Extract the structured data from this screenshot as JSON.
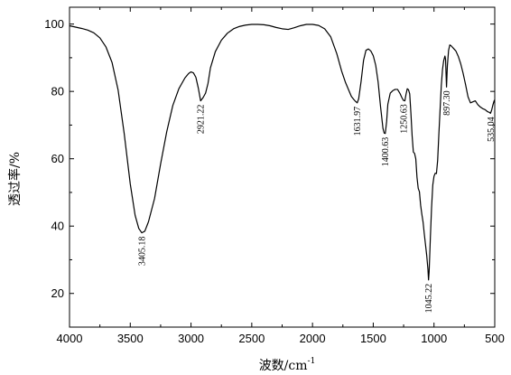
{
  "chart_data": {
    "type": "line",
    "title": "",
    "xlabel": "波数/cm",
    "xlabel_superscript": "-1",
    "ylabel": "透过率/%",
    "xlim": [
      4000,
      500
    ],
    "ylim": [
      10,
      105
    ],
    "x_reversed": true,
    "grid": false,
    "legend": "none",
    "xticks": [
      4000,
      3500,
      3000,
      2500,
      2000,
      1500,
      1000,
      500
    ],
    "yticks": [
      20,
      40,
      60,
      80,
      100
    ],
    "line_color": "#000000",
    "series": [
      {
        "x": [
          4000,
          3950,
          3900,
          3850,
          3800,
          3750,
          3700,
          3650,
          3600,
          3550,
          3500,
          3460,
          3430,
          3405,
          3380,
          3350,
          3300,
          3250,
          3200,
          3150,
          3100,
          3050,
          3020,
          3000,
          2980,
          2960,
          2940,
          2921,
          2900,
          2880,
          2860,
          2840,
          2800,
          2750,
          2700,
          2650,
          2600,
          2550,
          2500,
          2450,
          2400,
          2350,
          2300,
          2250,
          2200,
          2150,
          2100,
          2050,
          2000,
          1950,
          1900,
          1850,
          1800,
          1760,
          1730,
          1700,
          1680,
          1660,
          1645,
          1632,
          1620,
          1600,
          1580,
          1560,
          1540,
          1520,
          1500,
          1480,
          1460,
          1440,
          1420,
          1410,
          1401,
          1390,
          1380,
          1360,
          1340,
          1320,
          1300,
          1280,
          1265,
          1251,
          1240,
          1230,
          1220,
          1210,
          1200,
          1190,
          1180,
          1170,
          1160,
          1150,
          1140,
          1130,
          1120,
          1110,
          1100,
          1090,
          1080,
          1070,
          1060,
          1050,
          1045,
          1040,
          1030,
          1020,
          1010,
          1000,
          990,
          980,
          970,
          960,
          950,
          940,
          930,
          920,
          910,
          905,
          897,
          890,
          880,
          870,
          860,
          850,
          840,
          820,
          800,
          780,
          760,
          740,
          720,
          700,
          680,
          660,
          640,
          620,
          600,
          580,
          560,
          545,
          535,
          525,
          515,
          505,
          500
        ],
        "y": [
          99.5,
          99.1,
          98.7,
          98.2,
          97.4,
          95.9,
          93.2,
          88.6,
          80.4,
          67.5,
          52.5,
          43.2,
          39.3,
          38,
          38.5,
          41.3,
          48.2,
          58.5,
          68,
          75.8,
          80.8,
          84,
          85.3,
          85.8,
          85.5,
          84.2,
          81,
          77.2,
          78.2,
          79.5,
          82.4,
          87,
          91.8,
          95.2,
          97.3,
          98.6,
          99.3,
          99.7,
          99.9,
          99.9,
          99.8,
          99.5,
          99,
          98.6,
          98.4,
          98.9,
          99.5,
          99.9,
          99.9,
          99.6,
          98.6,
          96.2,
          91.2,
          86,
          82.8,
          80.2,
          78.5,
          77.6,
          77,
          76.6,
          77.8,
          83,
          89.2,
          92.2,
          92.6,
          92,
          90.6,
          87.8,
          82.8,
          75.5,
          69,
          67.6,
          67.5,
          71,
          76.2,
          79.5,
          80.2,
          80.6,
          80.6,
          79.4,
          78.2,
          77.3,
          77.2,
          79.2,
          80.8,
          80.5,
          79.3,
          73.5,
          66.8,
          62,
          61.6,
          60,
          54.5,
          51.2,
          50.2,
          46.2,
          43.5,
          41.2,
          37.7,
          34.5,
          31.3,
          27.2,
          24,
          26.5,
          36.5,
          45.5,
          52.2,
          54.8,
          55.7,
          55.6,
          59.5,
          67.3,
          74.5,
          81.7,
          86.5,
          89.2,
          90.5,
          89.5,
          81.3,
          87.6,
          92.2,
          93.8,
          93.6,
          93.2,
          92.8,
          92,
          90.4,
          88.2,
          85.3,
          82,
          78.4,
          76.6,
          76.9,
          77.2,
          76.1,
          75.4,
          74.9,
          74.6,
          74,
          73.8,
          73.5,
          74.5,
          76,
          77.2,
          77.5
        ]
      }
    ],
    "annotations": [
      {
        "text": "3405.18",
        "x": 3405,
        "y": 38
      },
      {
        "text": "2921.22",
        "x": 2921,
        "y": 77.2
      },
      {
        "text": "1631.97",
        "x": 1632,
        "y": 76.6
      },
      {
        "text": "1400.63",
        "x": 1401,
        "y": 67.5
      },
      {
        "text": "1250.63",
        "x": 1251,
        "y": 77.3
      },
      {
        "text": "1045.22",
        "x": 1045,
        "y": 24
      },
      {
        "text": "897.30",
        "x": 897,
        "y": 81.3
      },
      {
        "text": "535.04",
        "x": 535,
        "y": 73.5
      }
    ]
  }
}
